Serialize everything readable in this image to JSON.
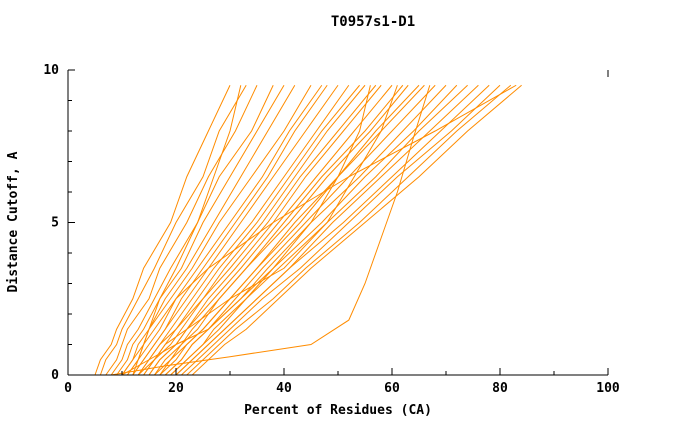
{
  "colors": {
    "curve": "#ff8c00",
    "axis": "#000000",
    "background": "#ffffff"
  },
  "chart_data": {
    "type": "line",
    "title": "T0957s1-D1",
    "xlabel": "Percent of Residues (CA)",
    "ylabel": "Distance Cutoff, A",
    "xlim": [
      0,
      100
    ],
    "ylim": [
      0,
      10
    ],
    "x_ticks": [
      0,
      20,
      40,
      60,
      80,
      100
    ],
    "x_minor_ticks": [
      10,
      30,
      50,
      70,
      90
    ],
    "y_ticks": [
      0,
      5,
      10
    ],
    "y_minor_ticks": [
      1,
      2,
      3,
      4,
      6,
      7,
      8,
      9
    ],
    "grid": false,
    "legend": "none",
    "default_y": [
      0,
      0.5,
      1,
      1.5,
      2.5,
      3.5,
      5,
      6.5,
      8,
      9.5
    ],
    "series": [
      {
        "x": [
          5,
          6,
          8,
          9,
          12,
          14,
          19,
          22,
          26,
          30
        ]
      },
      {
        "x": [
          6,
          7,
          9,
          10,
          13,
          16,
          20,
          25,
          28,
          33
        ]
      },
      {
        "x": [
          7,
          9,
          10,
          11,
          15,
          17,
          22,
          26,
          31,
          35
        ]
      },
      {
        "x": [
          8,
          10,
          11,
          13,
          16,
          19,
          24,
          28,
          34,
          38
        ]
      },
      {
        "x": [
          9,
          11,
          12,
          14,
          17,
          21,
          25,
          30,
          35,
          40
        ]
      },
      {
        "x": [
          10,
          12,
          13,
          15,
          18,
          22,
          27,
          32,
          37,
          42
        ]
      },
      {
        "x": [
          10,
          12,
          14,
          15,
          19,
          23,
          28,
          34,
          40,
          45
        ]
      },
      {
        "x": [
          11,
          13,
          15,
          17,
          20,
          24,
          30,
          36,
          41,
          47
        ]
      },
      {
        "x": [
          12,
          14,
          16,
          18,
          21,
          25,
          31,
          37,
          42,
          48
        ]
      },
      {
        "x": [
          12,
          14,
          16,
          18,
          22,
          26,
          32,
          38,
          44,
          50
        ]
      },
      {
        "x": [
          13,
          15,
          17,
          19,
          23,
          27,
          34,
          40,
          46,
          52
        ]
      },
      {
        "x": [
          13,
          15,
          17,
          20,
          24,
          28,
          35,
          41,
          47,
          54
        ]
      },
      {
        "x": [
          14,
          16,
          18,
          20,
          25,
          29,
          36,
          42,
          48,
          55
        ]
      },
      {
        "x": [
          14,
          16,
          19,
          21,
          25,
          30,
          37,
          43,
          50,
          57
        ]
      },
      {
        "x": [
          15,
          17,
          20,
          22,
          26,
          31,
          38,
          44,
          51,
          58
        ]
      },
      {
        "x": [
          15,
          17,
          20,
          22,
          27,
          32,
          39,
          46,
          53,
          60
        ]
      },
      {
        "x": [
          16,
          18,
          21,
          23,
          28,
          33,
          40,
          47,
          55,
          62
        ]
      },
      {
        "x": [
          16,
          19,
          21,
          24,
          28,
          33,
          41,
          48,
          56,
          63
        ]
      },
      {
        "x": [
          17,
          19,
          22,
          25,
          30,
          35,
          42,
          50,
          57,
          65
        ]
      },
      {
        "x": [
          17,
          20,
          22,
          25,
          30,
          35,
          43,
          50,
          58,
          66
        ]
      },
      {
        "x": [
          18,
          21,
          23,
          26,
          31,
          36,
          44,
          52,
          60,
          68
        ]
      },
      {
        "x": [
          18,
          21,
          23,
          26,
          32,
          37,
          45,
          54,
          62,
          70
        ]
      },
      {
        "x": [
          19,
          22,
          25,
          27,
          33,
          38,
          47,
          55,
          64,
          72
        ]
      },
      {
        "x": [
          19,
          22,
          25,
          28,
          33,
          39,
          48,
          57,
          65,
          74
        ]
      },
      {
        "x": [
          20,
          23,
          26,
          29,
          35,
          41,
          49,
          58,
          67,
          76
        ]
      },
      {
        "x": [
          20,
          23,
          26,
          29,
          35,
          41,
          51,
          60,
          69,
          78
        ]
      },
      {
        "x": [
          21,
          24,
          27,
          30,
          36,
          43,
          52,
          61,
          71,
          80
        ]
      },
      {
        "x": [
          22,
          25,
          28,
          31,
          38,
          44,
          54,
          63,
          72,
          82
        ]
      },
      {
        "x": [
          23,
          26,
          29,
          33,
          39,
          45,
          55,
          65,
          74,
          84
        ]
      },
      {
        "x": [
          8,
          18,
          30,
          45,
          52,
          55,
          58,
          61,
          64,
          67
        ],
        "y": [
          0,
          0.3,
          0.6,
          1,
          1.8,
          3,
          4.5,
          6,
          7.8,
          9.5
        ]
      },
      {
        "x": [
          10,
          15,
          20,
          26,
          32,
          38,
          45,
          50,
          54,
          56
        ]
      },
      {
        "x": [
          12,
          13,
          14,
          16,
          20,
          26,
          38,
          52,
          68,
          83
        ]
      },
      {
        "x": [
          11,
          13,
          14,
          15,
          17,
          20,
          24,
          27,
          30,
          32
        ]
      },
      {
        "x": [
          13,
          16,
          18,
          22,
          30,
          40,
          48,
          53,
          58,
          61
        ]
      }
    ]
  }
}
